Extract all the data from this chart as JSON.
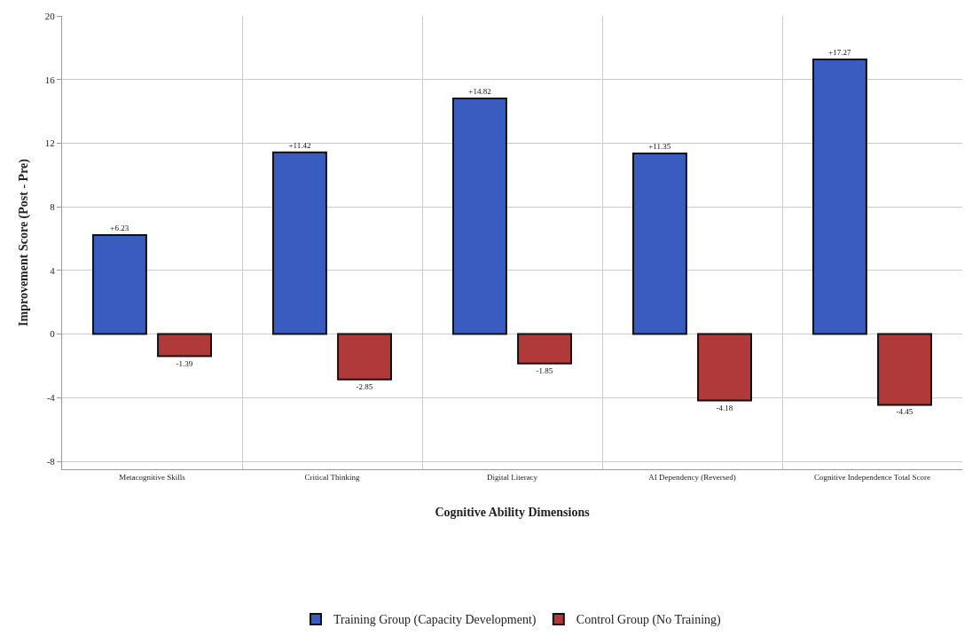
{
  "chart_data": {
    "type": "bar",
    "xlabel": "Cognitive Ability Dimensions",
    "ylabel": "Improvement Score (Post - Pre)",
    "categories": [
      "Metacognitive Skills",
      "Critical Thinking",
      "Digital Literacy",
      "AI Dependency (Reversed)",
      "Cognitive Independence Total Score"
    ],
    "series": [
      {
        "name": "Training Group (Capacity Development)",
        "color": "#3a5bbf",
        "values": [
          6.23,
          11.42,
          14.82,
          11.35,
          17.27
        ],
        "value_labels": [
          "+6.23",
          "+11.42",
          "+14.82",
          "+11.35",
          "+17.27"
        ]
      },
      {
        "name": "Control Group (No Training)",
        "color": "#b03a3a",
        "values": [
          -1.39,
          -2.85,
          -1.85,
          -4.18,
          -4.45
        ],
        "value_labels": [
          "-1.39",
          "-2.85",
          "-1.85",
          "-4.18",
          "-4.45"
        ]
      }
    ],
    "ylim": [
      -8.5,
      20
    ],
    "yticks": [
      -8,
      -4,
      0,
      4,
      8,
      12,
      16,
      20
    ],
    "grid": true,
    "legend": "bottom"
  }
}
